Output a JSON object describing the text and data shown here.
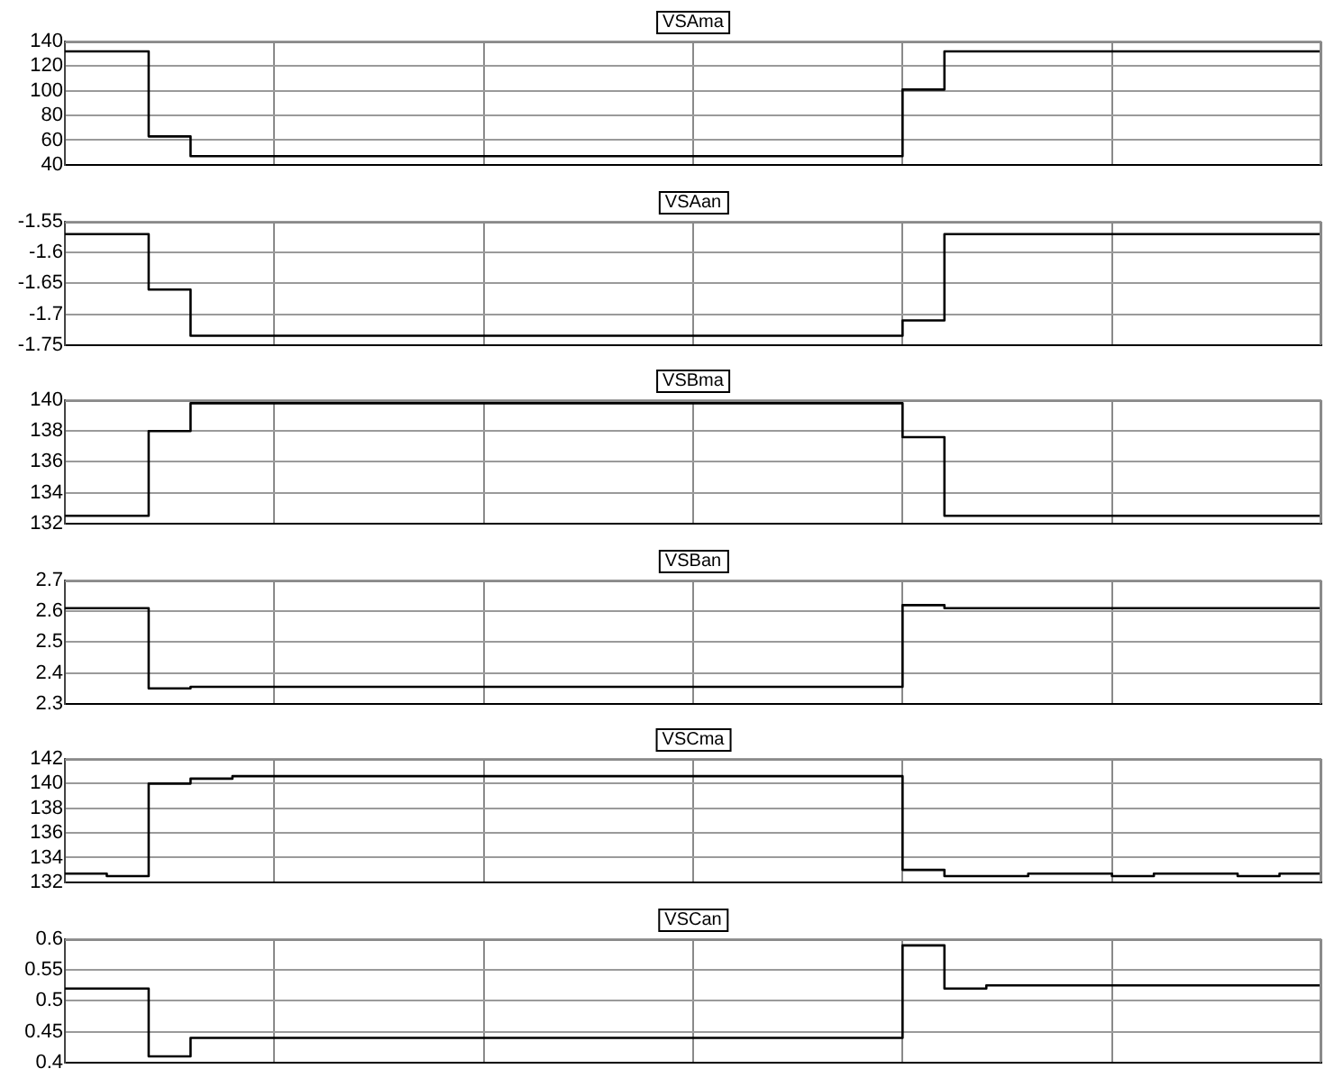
{
  "chart_data": [
    {
      "type": "step",
      "title": "VSAma",
      "color": "#000000",
      "grid": true,
      "tick_labels": "y",
      "ylim": [
        40,
        140
      ],
      "yticks": [
        40,
        60,
        80,
        100,
        120,
        140
      ],
      "categories": [
        null,
        null,
        null,
        null,
        null,
        null,
        null,
        null,
        null,
        null,
        null,
        null,
        null,
        null,
        null,
        null,
        null,
        null,
        null,
        null,
        null,
        null,
        null,
        null,
        null,
        null,
        null,
        null,
        null,
        null,
        null,
        null,
        null,
        null,
        null,
        null,
        null,
        null,
        null,
        null,
        null,
        null,
        null,
        null,
        null,
        null,
        null,
        null,
        null,
        null,
        null,
        null,
        null,
        null,
        null,
        null,
        null,
        null,
        null,
        null,
        null
      ],
      "values": [
        132,
        132,
        132,
        132,
        132,
        63,
        63,
        47,
        47,
        47,
        47,
        47,
        47,
        47,
        47,
        47,
        47,
        47,
        47,
        47,
        47,
        47,
        47,
        47,
        47,
        47,
        47,
        47,
        47,
        47,
        47,
        47,
        47,
        47,
        47,
        47,
        47,
        47,
        47,
        47,
        47,
        101,
        101,
        132,
        132,
        132,
        132,
        132,
        132,
        132,
        132,
        132,
        132,
        132,
        132,
        132,
        132,
        132,
        132,
        132,
        132
      ]
    },
    {
      "type": "step",
      "title": "VSAan",
      "color": "#000000",
      "grid": true,
      "tick_labels": "y",
      "ylim": [
        -1.75,
        -1.55
      ],
      "yticks": [
        -1.75,
        -1.7,
        -1.65,
        -1.6,
        -1.55
      ],
      "categories": [
        null,
        null,
        null,
        null,
        null,
        null,
        null,
        null,
        null,
        null,
        null,
        null,
        null,
        null,
        null,
        null,
        null,
        null,
        null,
        null,
        null,
        null,
        null,
        null,
        null,
        null,
        null,
        null,
        null,
        null,
        null,
        null,
        null,
        null,
        null,
        null,
        null,
        null,
        null,
        null,
        null,
        null,
        null,
        null,
        null,
        null,
        null,
        null,
        null,
        null,
        null,
        null,
        null,
        null,
        null,
        null,
        null,
        null,
        null,
        null,
        null
      ],
      "values": [
        -1.57,
        -1.57,
        -1.57,
        -1.57,
        -1.57,
        -1.66,
        -1.66,
        -1.735,
        -1.735,
        -1.735,
        -1.735,
        -1.735,
        -1.735,
        -1.735,
        -1.735,
        -1.735,
        -1.735,
        -1.735,
        -1.735,
        -1.735,
        -1.735,
        -1.735,
        -1.735,
        -1.735,
        -1.735,
        -1.735,
        -1.735,
        -1.735,
        -1.735,
        -1.735,
        -1.735,
        -1.735,
        -1.735,
        -1.735,
        -1.735,
        -1.735,
        -1.735,
        -1.735,
        -1.735,
        -1.735,
        -1.735,
        -1.71,
        -1.71,
        -1.57,
        -1.57,
        -1.57,
        -1.57,
        -1.57,
        -1.57,
        -1.57,
        -1.57,
        -1.57,
        -1.57,
        -1.57,
        -1.57,
        -1.57,
        -1.57,
        -1.57,
        -1.57,
        -1.57,
        -1.57
      ]
    },
    {
      "type": "step",
      "title": "VSBma",
      "color": "#000000",
      "grid": true,
      "tick_labels": "y",
      "ylim": [
        132,
        140
      ],
      "yticks": [
        132,
        134,
        136,
        138,
        140
      ],
      "categories": [
        null,
        null,
        null,
        null,
        null,
        null,
        null,
        null,
        null,
        null,
        null,
        null,
        null,
        null,
        null,
        null,
        null,
        null,
        null,
        null,
        null,
        null,
        null,
        null,
        null,
        null,
        null,
        null,
        null,
        null,
        null,
        null,
        null,
        null,
        null,
        null,
        null,
        null,
        null,
        null,
        null,
        null,
        null,
        null,
        null,
        null,
        null,
        null,
        null,
        null,
        null,
        null,
        null,
        null,
        null,
        null,
        null,
        null,
        null,
        null,
        null
      ],
      "values": [
        132.5,
        132.5,
        132.5,
        132.5,
        132.5,
        138,
        138,
        139.8,
        139.8,
        139.8,
        139.8,
        139.8,
        139.8,
        139.8,
        139.8,
        139.8,
        139.8,
        139.8,
        139.8,
        139.8,
        139.8,
        139.8,
        139.8,
        139.8,
        139.8,
        139.8,
        139.8,
        139.8,
        139.8,
        139.8,
        139.8,
        139.8,
        139.8,
        139.8,
        139.8,
        139.8,
        139.8,
        139.8,
        139.8,
        139.8,
        139.8,
        137.6,
        137.6,
        132.5,
        132.5,
        132.5,
        132.5,
        132.5,
        132.5,
        132.5,
        132.5,
        132.5,
        132.5,
        132.5,
        132.5,
        132.5,
        132.5,
        132.5,
        132.5,
        132.5,
        132.5
      ]
    },
    {
      "type": "step",
      "title": "VSBan",
      "color": "#000000",
      "grid": true,
      "tick_labels": "y",
      "ylim": [
        2.3,
        2.7
      ],
      "yticks": [
        2.3,
        2.4,
        2.5,
        2.6,
        2.7
      ],
      "categories": [
        null,
        null,
        null,
        null,
        null,
        null,
        null,
        null,
        null,
        null,
        null,
        null,
        null,
        null,
        null,
        null,
        null,
        null,
        null,
        null,
        null,
        null,
        null,
        null,
        null,
        null,
        null,
        null,
        null,
        null,
        null,
        null,
        null,
        null,
        null,
        null,
        null,
        null,
        null,
        null,
        null,
        null,
        null,
        null,
        null,
        null,
        null,
        null,
        null,
        null,
        null,
        null,
        null,
        null,
        null,
        null,
        null,
        null,
        null,
        null,
        null
      ],
      "values": [
        2.61,
        2.61,
        2.61,
        2.61,
        2.61,
        2.35,
        2.35,
        2.355,
        2.355,
        2.355,
        2.355,
        2.355,
        2.355,
        2.355,
        2.355,
        2.355,
        2.355,
        2.355,
        2.355,
        2.355,
        2.355,
        2.355,
        2.355,
        2.355,
        2.355,
        2.355,
        2.355,
        2.355,
        2.355,
        2.355,
        2.355,
        2.355,
        2.355,
        2.355,
        2.355,
        2.355,
        2.355,
        2.355,
        2.355,
        2.355,
        2.355,
        2.62,
        2.62,
        2.61,
        2.61,
        2.61,
        2.61,
        2.61,
        2.61,
        2.61,
        2.61,
        2.61,
        2.61,
        2.61,
        2.61,
        2.61,
        2.61,
        2.61,
        2.61,
        2.61,
        2.61
      ]
    },
    {
      "type": "step",
      "title": "VSCma",
      "color": "#000000",
      "grid": true,
      "tick_labels": "y",
      "ylim": [
        132,
        142
      ],
      "yticks": [
        132,
        134,
        136,
        138,
        140,
        142
      ],
      "categories": [
        null,
        null,
        null,
        null,
        null,
        null,
        null,
        null,
        null,
        null,
        null,
        null,
        null,
        null,
        null,
        null,
        null,
        null,
        null,
        null,
        null,
        null,
        null,
        null,
        null,
        null,
        null,
        null,
        null,
        null,
        null,
        null,
        null,
        null,
        null,
        null,
        null,
        null,
        null,
        null,
        null,
        null,
        null,
        null,
        null,
        null,
        null,
        null,
        null,
        null,
        null,
        null,
        null,
        null,
        null,
        null,
        null,
        null,
        null,
        null,
        null
      ],
      "values": [
        132.7,
        132.7,
        132.7,
        132.5,
        132.5,
        140,
        140,
        140.4,
        140.4,
        140.6,
        140.6,
        140.6,
        140.6,
        140.6,
        140.6,
        140.6,
        140.6,
        140.6,
        140.6,
        140.6,
        140.6,
        140.6,
        140.6,
        140.6,
        140.6,
        140.6,
        140.6,
        140.6,
        140.6,
        140.6,
        140.6,
        140.6,
        140.6,
        140.6,
        140.6,
        140.6,
        140.6,
        140.6,
        140.6,
        140.6,
        140.6,
        133,
        133,
        132.5,
        132.5,
        132.5,
        132.5,
        132.7,
        132.7,
        132.7,
        132.7,
        132.5,
        132.5,
        132.7,
        132.7,
        132.7,
        132.7,
        132.5,
        132.5,
        132.7,
        132.7
      ]
    },
    {
      "type": "step",
      "title": "VSCan",
      "color": "#000000",
      "grid": true,
      "tick_labels": "y",
      "ylim": [
        0.4,
        0.6
      ],
      "yticks": [
        0.4,
        0.45,
        0.5,
        0.55,
        0.6
      ],
      "categories": [
        null,
        null,
        null,
        null,
        null,
        null,
        null,
        null,
        null,
        null,
        null,
        null,
        null,
        null,
        null,
        null,
        null,
        null,
        null,
        null,
        null,
        null,
        null,
        null,
        null,
        null,
        null,
        null,
        null,
        null,
        null,
        null,
        null,
        null,
        null,
        null,
        null,
        null,
        null,
        null,
        null,
        null,
        null,
        null,
        null,
        null,
        null,
        null,
        null,
        null,
        null,
        null,
        null,
        null,
        null,
        null,
        null,
        null,
        null,
        null,
        null
      ],
      "values": [
        0.52,
        0.52,
        0.52,
        0.52,
        0.52,
        0.41,
        0.41,
        0.44,
        0.44,
        0.44,
        0.44,
        0.44,
        0.44,
        0.44,
        0.44,
        0.44,
        0.44,
        0.44,
        0.44,
        0.44,
        0.44,
        0.44,
        0.44,
        0.44,
        0.44,
        0.44,
        0.44,
        0.44,
        0.44,
        0.44,
        0.44,
        0.44,
        0.44,
        0.44,
        0.44,
        0.44,
        0.44,
        0.44,
        0.44,
        0.44,
        0.44,
        0.59,
        0.59,
        0.52,
        0.52,
        0.525,
        0.525,
        0.525,
        0.525,
        0.525,
        0.525,
        0.525,
        0.525,
        0.525,
        0.525,
        0.525,
        0.525,
        0.525,
        0.525,
        0.525,
        0.525
      ]
    }
  ]
}
